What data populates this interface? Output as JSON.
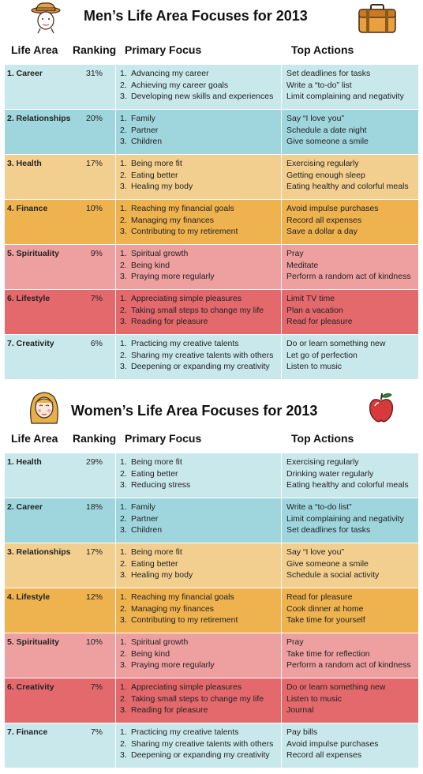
{
  "men": {
    "title": "Men’s Life Area Focuses for 2013",
    "icon": "man-with-hat-icon",
    "accent_icon": "suitcase-icon",
    "headers": {
      "area": "Life Area",
      "ranking": "Ranking",
      "focus": "Primary Focus",
      "actions": "Top Actions"
    },
    "rows": [
      {
        "area": "1. Career",
        "ranking": "31%",
        "color": "#c9e8ec",
        "focus": [
          {
            "n": "1.",
            "t": "Advancing my career"
          },
          {
            "n": "2.",
            "t": "Achieving my career goals"
          },
          {
            "n": "3.",
            "t": "Developing new skills and experiences"
          }
        ],
        "actions": [
          "Set deadlines for tasks",
          "Write a “to-do” list",
          "Limit complaining and negativity"
        ]
      },
      {
        "area": "2. Relationships",
        "ranking": "20%",
        "color": "#9fd6de",
        "focus": [
          {
            "n": "1.",
            "t": "Family"
          },
          {
            "n": "2.",
            "t": "Partner"
          },
          {
            "n": "3.",
            "t": "Children"
          }
        ],
        "actions": [
          "Say “I love you”",
          "Schedule a date night",
          "Give someone a smile"
        ]
      },
      {
        "area": "3. Health",
        "ranking": "17%",
        "color": "#f3cf8f",
        "focus": [
          {
            "n": "1.",
            "t": "Being more fit"
          },
          {
            "n": "2.",
            "t": "Eating better"
          },
          {
            "n": "3.",
            "t": "Healing my body"
          }
        ],
        "actions": [
          "Exercising regularly",
          "Getting enough sleep",
          "Eating healthy and colorful meals"
        ]
      },
      {
        "area": "4. Finance",
        "ranking": "10%",
        "color": "#eeb24f",
        "focus": [
          {
            "n": "1.",
            "t": "Reaching my financial goals"
          },
          {
            "n": "2.",
            "t": "Managing my finances"
          },
          {
            "n": "3.",
            "t": "Contributing to my retirement"
          }
        ],
        "actions": [
          "Avoid impulse purchases",
          "Record all expenses",
          "Save a dollar a day"
        ]
      },
      {
        "area": "5. Spirituality",
        "ranking": "9%",
        "color": "#ee9fa0",
        "focus": [
          {
            "n": "1.",
            "t": "Spiritual growth"
          },
          {
            "n": "2.",
            "t": "Being kind"
          },
          {
            "n": "3.",
            "t": "Praying more regularly"
          }
        ],
        "actions": [
          "Pray",
          "Meditate",
          "Perform a random act of kindness"
        ]
      },
      {
        "area": "6. Lifestyle",
        "ranking": "7%",
        "color": "#e4696d",
        "focus": [
          {
            "n": "1.",
            "t": "Appreciating simple pleasures"
          },
          {
            "n": "2.",
            "t": "Taking small steps to change my life"
          },
          {
            "n": "3.",
            "t": "Reading for pleasure"
          }
        ],
        "actions": [
          "Limit TV time",
          "Plan a vacation",
          "Read for pleasure"
        ]
      },
      {
        "area": "7. Creativity",
        "ranking": "6%",
        "color": "#c9e8ec",
        "focus": [
          {
            "n": "1.",
            "t": "Practicing my creative talents"
          },
          {
            "n": "2.",
            "t": "Sharing my creative talents with others"
          },
          {
            "n": "3.",
            "t": "Deepening or expanding my creativity"
          }
        ],
        "actions": [
          "Do or learn something new",
          "Let go of perfection",
          "Listen to music"
        ]
      }
    ]
  },
  "women": {
    "title": "Women’s Life Area Focuses for 2013",
    "icon": "woman-face-icon",
    "accent_icon": "apple-icon",
    "headers": {
      "area": "Life Area",
      "ranking": "Ranking",
      "focus": "Primary Focus",
      "actions": "Top Actions"
    },
    "rows": [
      {
        "area": "1. Health",
        "ranking": "29%",
        "color": "#c9e8ec",
        "focus": [
          {
            "n": "1.",
            "t": "Being more fit"
          },
          {
            "n": "2.",
            "t": "Eating better"
          },
          {
            "n": "3.",
            "t": "Reducing stress"
          }
        ],
        "actions": [
          "Exercising regularly",
          "Drinking water regularly",
          "Eating healthy and colorful meals"
        ]
      },
      {
        "area": "2. Career",
        "ranking": "18%",
        "color": "#9fd6de",
        "focus": [
          {
            "n": "1.",
            "t": "Family"
          },
          {
            "n": "2.",
            "t": "Partner"
          },
          {
            "n": "3.",
            "t": "Children"
          }
        ],
        "actions": [
          "Write a “to-do list”",
          "Limit complaining and negativity",
          "Set deadlines for tasks"
        ]
      },
      {
        "area": "3. Relationships",
        "ranking": "17%",
        "color": "#f3cf8f",
        "focus": [
          {
            "n": "1.",
            "t": "Being more fit"
          },
          {
            "n": "2.",
            "t": "Eating better"
          },
          {
            "n": "3.",
            "t": "Healing my body"
          }
        ],
        "actions": [
          "Say “I love you”",
          "Give someone a smile",
          "Schedule a social activity"
        ]
      },
      {
        "area": "4. Lifestyle",
        "ranking": "12%",
        "color": "#eeb24f",
        "focus": [
          {
            "n": "1.",
            "t": "Reaching my financial goals"
          },
          {
            "n": "2.",
            "t": "Managing my finances"
          },
          {
            "n": "3.",
            "t": "Contributing to my retirement"
          }
        ],
        "actions": [
          "Read for pleasure",
          "Cook dinner at home",
          "Take time for yourself"
        ]
      },
      {
        "area": "5. Spirituality",
        "ranking": "10%",
        "color": "#ee9fa0",
        "focus": [
          {
            "n": "1.",
            "t": "Spiritual growth"
          },
          {
            "n": "2.",
            "t": "Being kind"
          },
          {
            "n": "3.",
            "t": "Praying more regularly"
          }
        ],
        "actions": [
          "Pray",
          "Take time for reflection",
          "Perform a random act of kindness"
        ]
      },
      {
        "area": "6. Creativity",
        "ranking": "7%",
        "color": "#e4696d",
        "focus": [
          {
            "n": "1.",
            "t": "Appreciating simple pleasures"
          },
          {
            "n": "2.",
            "t": "Taking small steps to change my life"
          },
          {
            "n": "3.",
            "t": "Reading for pleasure"
          }
        ],
        "actions": [
          "Do or learn something new",
          "Listen to music",
          "Journal"
        ]
      },
      {
        "area": "7. Finance",
        "ranking": "7%",
        "color": "#c9e8ec",
        "focus": [
          {
            "n": "1.",
            "t": "Practicing my creative talents"
          },
          {
            "n": "2.",
            "t": "Sharing my creative talents with others"
          },
          {
            "n": "3.",
            "t": "Deepening or expanding my creativity"
          }
        ],
        "actions": [
          "Pay bills",
          "Avoid impulse purchases",
          "Record all expenses"
        ]
      }
    ]
  }
}
